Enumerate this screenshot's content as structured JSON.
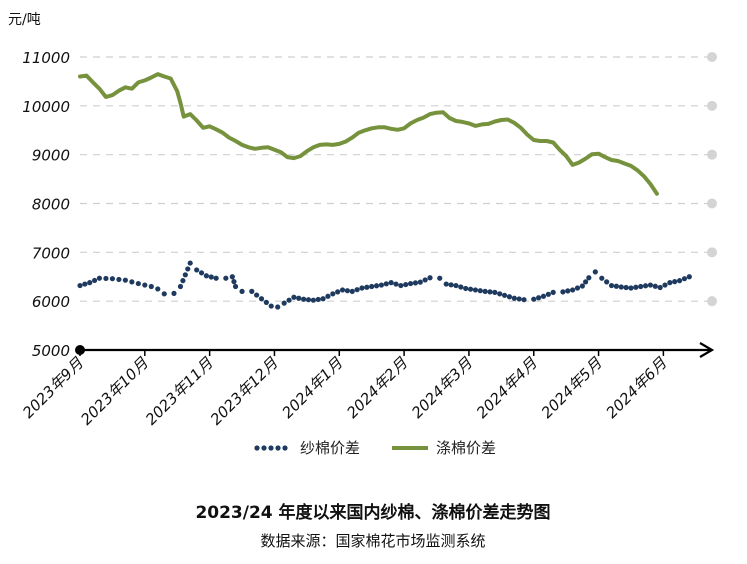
{
  "chart_data": {
    "type": "line",
    "title": "2023/24 年度以来国内纱棉、涤棉价差走势图",
    "source": "数据来源：国家棉花市场监测系统",
    "y_unit": "元/吨",
    "ylim": [
      5000,
      11000
    ],
    "yticks": [
      5000,
      6000,
      7000,
      8000,
      9000,
      10000,
      11000
    ],
    "x_range": [
      0,
      195
    ],
    "x_ticks": [
      {
        "label": "2023年9月",
        "x": 0
      },
      {
        "label": "2023年10月",
        "x": 20
      },
      {
        "label": "2023年11月",
        "x": 40
      },
      {
        "label": "2023年12月",
        "x": 60
      },
      {
        "label": "2024年1月",
        "x": 80
      },
      {
        "label": "2024年2月",
        "x": 100
      },
      {
        "label": "2024年3月",
        "x": 120
      },
      {
        "label": "2024年4月",
        "x": 140
      },
      {
        "label": "2024年5月",
        "x": 160
      },
      {
        "label": "2024年6月",
        "x": 180
      }
    ],
    "grid": "horizontal-dashed",
    "legend_position": "bottom",
    "series": [
      {
        "name": "纱棉价差",
        "style": "dotted",
        "color": "#1f3a5f",
        "points": [
          [
            0,
            6320
          ],
          [
            3,
            6380
          ],
          [
            6,
            6470
          ],
          [
            10,
            6460
          ],
          [
            14,
            6430
          ],
          [
            18,
            6360
          ],
          [
            22,
            6300
          ],
          [
            24,
            6250
          ],
          [
            26,
            6150
          ],
          [
            29,
            6160
          ],
          [
            31,
            6300
          ],
          [
            34,
            6780
          ],
          [
            36,
            6640
          ],
          [
            39,
            6520
          ],
          [
            42,
            6470
          ],
          [
            45,
            6470
          ],
          [
            47,
            6500
          ],
          [
            48,
            6300
          ],
          [
            50,
            6200
          ],
          [
            53,
            6200
          ],
          [
            56,
            6050
          ],
          [
            59,
            5900
          ],
          [
            61,
            5880
          ],
          [
            63,
            5960
          ],
          [
            66,
            6080
          ],
          [
            69,
            6040
          ],
          [
            72,
            6020
          ],
          [
            75,
            6050
          ],
          [
            78,
            6150
          ],
          [
            81,
            6230
          ],
          [
            84,
            6200
          ],
          [
            87,
            6270
          ],
          [
            90,
            6300
          ],
          [
            93,
            6330
          ],
          [
            96,
            6380
          ],
          [
            99,
            6320
          ],
          [
            102,
            6360
          ],
          [
            105,
            6390
          ],
          [
            108,
            6480
          ],
          [
            111,
            6470
          ],
          [
            113,
            6350
          ],
          [
            116,
            6320
          ],
          [
            119,
            6260
          ],
          [
            122,
            6230
          ],
          [
            125,
            6200
          ],
          [
            128,
            6180
          ],
          [
            131,
            6120
          ],
          [
            134,
            6060
          ],
          [
            137,
            6030
          ],
          [
            140,
            6040
          ],
          [
            143,
            6100
          ],
          [
            146,
            6180
          ],
          [
            149,
            6190
          ],
          [
            152,
            6230
          ],
          [
            155,
            6310
          ],
          [
            157,
            6480
          ],
          [
            159,
            6600
          ],
          [
            161,
            6470
          ],
          [
            164,
            6320
          ],
          [
            167,
            6290
          ],
          [
            170,
            6270
          ],
          [
            173,
            6300
          ],
          [
            176,
            6330
          ],
          [
            179,
            6280
          ],
          [
            182,
            6380
          ],
          [
            185,
            6420
          ],
          [
            188,
            6500
          ]
        ]
      },
      {
        "name": "涤棉价差",
        "style": "solid",
        "color": "#76923c",
        "points": [
          [
            0,
            10600
          ],
          [
            2,
            10620
          ],
          [
            4,
            10480
          ],
          [
            6,
            10350
          ],
          [
            8,
            10180
          ],
          [
            10,
            10220
          ],
          [
            12,
            10310
          ],
          [
            14,
            10380
          ],
          [
            16,
            10350
          ],
          [
            18,
            10480
          ],
          [
            20,
            10520
          ],
          [
            22,
            10580
          ],
          [
            24,
            10650
          ],
          [
            26,
            10600
          ],
          [
            28,
            10560
          ],
          [
            30,
            10300
          ],
          [
            31,
            10060
          ],
          [
            32,
            9780
          ],
          [
            34,
            9830
          ],
          [
            36,
            9700
          ],
          [
            38,
            9550
          ],
          [
            40,
            9580
          ],
          [
            42,
            9520
          ],
          [
            44,
            9450
          ],
          [
            46,
            9350
          ],
          [
            48,
            9280
          ],
          [
            50,
            9200
          ],
          [
            52,
            9150
          ],
          [
            54,
            9120
          ],
          [
            56,
            9140
          ],
          [
            58,
            9150
          ],
          [
            60,
            9100
          ],
          [
            62,
            9050
          ],
          [
            64,
            8950
          ],
          [
            66,
            8930
          ],
          [
            68,
            8970
          ],
          [
            70,
            9070
          ],
          [
            72,
            9150
          ],
          [
            74,
            9200
          ],
          [
            76,
            9210
          ],
          [
            78,
            9200
          ],
          [
            80,
            9220
          ],
          [
            82,
            9270
          ],
          [
            84,
            9350
          ],
          [
            86,
            9450
          ],
          [
            88,
            9500
          ],
          [
            90,
            9540
          ],
          [
            92,
            9560
          ],
          [
            94,
            9560
          ],
          [
            96,
            9530
          ],
          [
            98,
            9510
          ],
          [
            100,
            9540
          ],
          [
            102,
            9640
          ],
          [
            104,
            9710
          ],
          [
            106,
            9760
          ],
          [
            108,
            9830
          ],
          [
            110,
            9860
          ],
          [
            112,
            9870
          ],
          [
            114,
            9750
          ],
          [
            116,
            9690
          ],
          [
            118,
            9670
          ],
          [
            120,
            9640
          ],
          [
            122,
            9590
          ],
          [
            124,
            9620
          ],
          [
            126,
            9630
          ],
          [
            128,
            9680
          ],
          [
            130,
            9710
          ],
          [
            132,
            9720
          ],
          [
            134,
            9650
          ],
          [
            136,
            9550
          ],
          [
            138,
            9410
          ],
          [
            140,
            9300
          ],
          [
            142,
            9280
          ],
          [
            144,
            9280
          ],
          [
            146,
            9250
          ],
          [
            148,
            9100
          ],
          [
            150,
            8970
          ],
          [
            152,
            8790
          ],
          [
            154,
            8840
          ],
          [
            156,
            8920
          ],
          [
            158,
            9010
          ],
          [
            160,
            9020
          ],
          [
            162,
            8950
          ],
          [
            164,
            8890
          ],
          [
            166,
            8870
          ],
          [
            168,
            8820
          ],
          [
            170,
            8770
          ],
          [
            172,
            8680
          ],
          [
            174,
            8560
          ],
          [
            176,
            8400
          ],
          [
            178,
            8200
          ]
        ]
      }
    ]
  }
}
